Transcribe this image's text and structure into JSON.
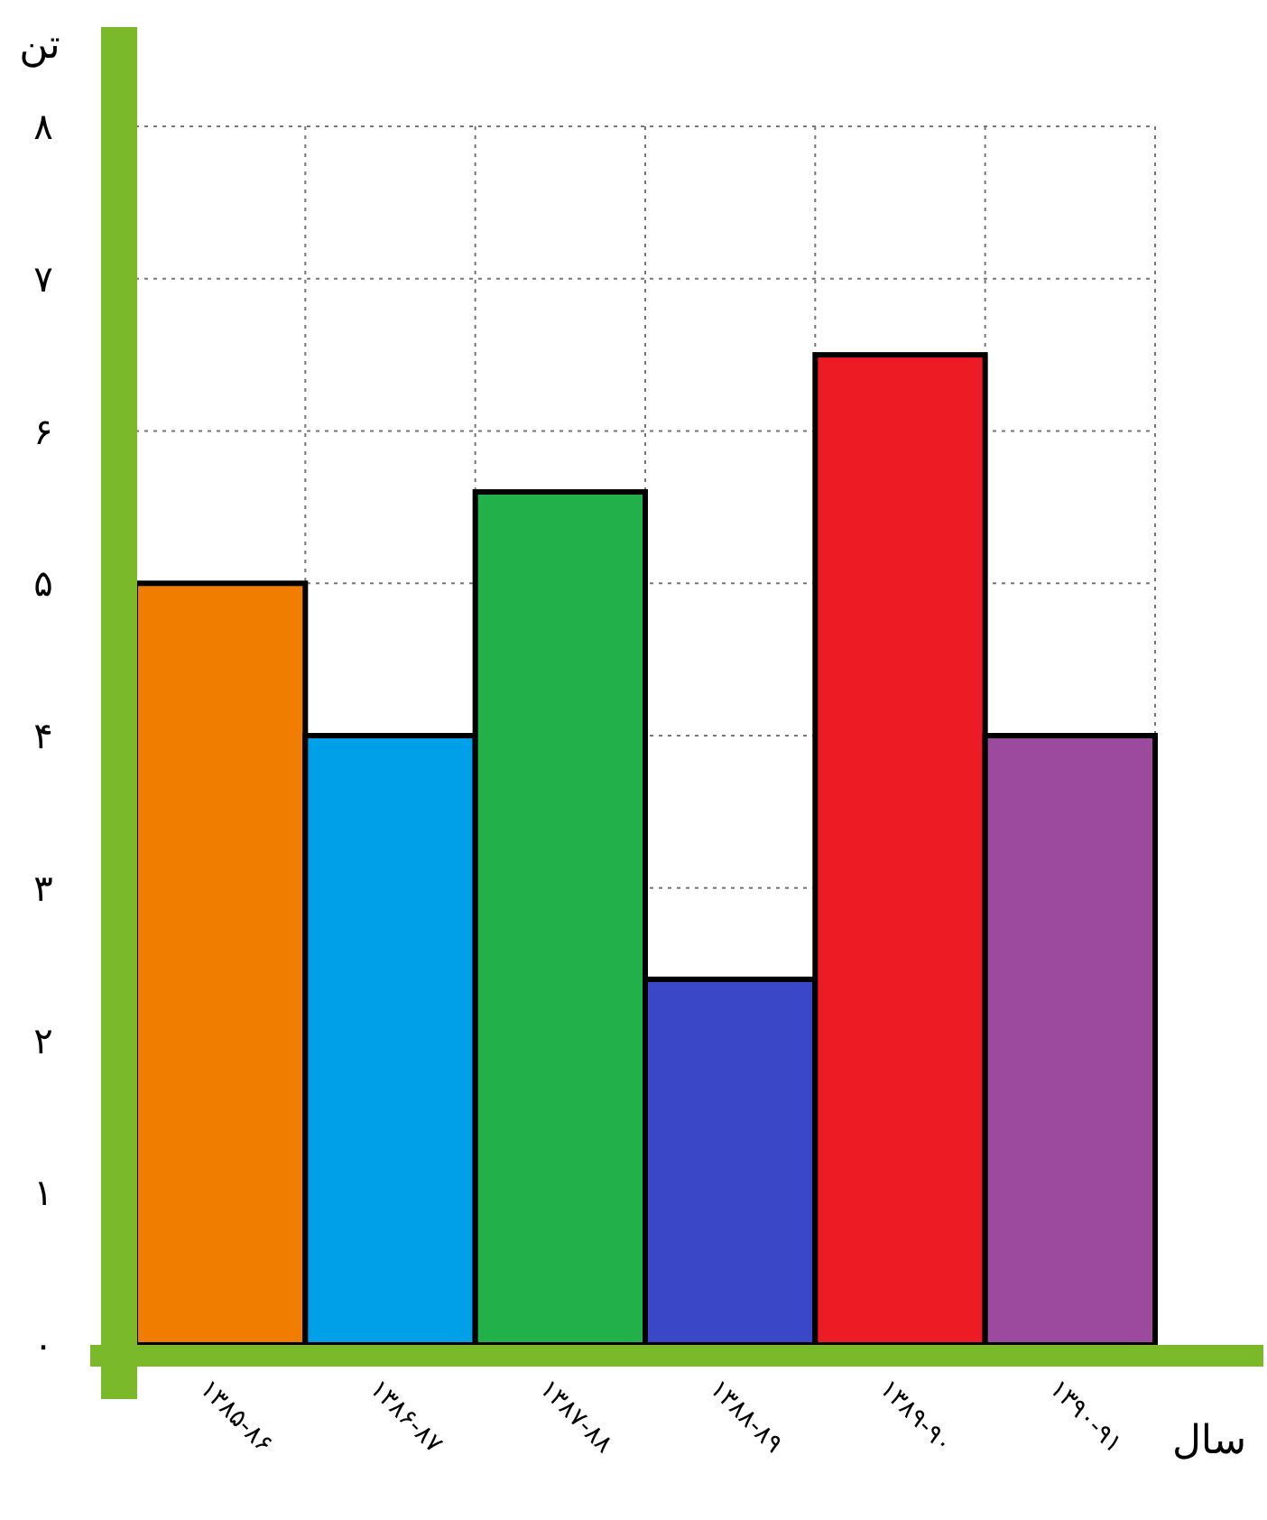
{
  "chart_data": {
    "type": "bar",
    "xlabel": "سال",
    "ylabel": "تن",
    "categories": [
      "۱۳۸۵-۸۶",
      "۱۳۸۶-۸۷",
      "۱۳۸۷-۸۸",
      "۱۳۸۸-۸۹",
      "۱۳۸۹-۹۰",
      "۱۳۹۰-۹۱"
    ],
    "values": [
      5,
      4,
      5.6,
      2.4,
      6.5,
      4
    ],
    "colors": [
      "#f07c00",
      "#00a0e8",
      "#22b04b",
      "#3a48c8",
      "#ed1c24",
      "#9b4a9e"
    ],
    "ylim": [
      0,
      8
    ],
    "yticks": [
      {
        "value": 0,
        "label": "۰"
      },
      {
        "value": 1,
        "label": "۱"
      },
      {
        "value": 2,
        "label": "۲"
      },
      {
        "value": 3,
        "label": "۳"
      },
      {
        "value": 4,
        "label": "۴"
      },
      {
        "value": 5,
        "label": "۵"
      },
      {
        "value": 6,
        "label": "۶"
      },
      {
        "value": 7,
        "label": "۷"
      },
      {
        "value": 8,
        "label": "۸"
      }
    ],
    "grid": true
  }
}
